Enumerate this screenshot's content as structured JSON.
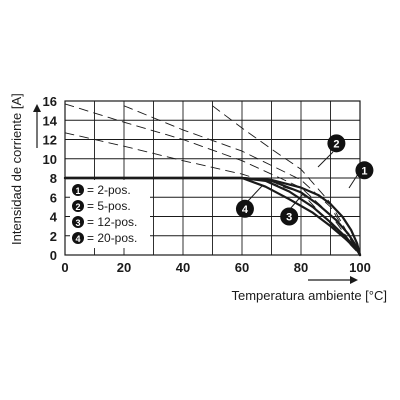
{
  "chart_data": {
    "type": "line",
    "xlabel": "Temperatura ambiente [°C]",
    "ylabel": "Intensidad de corriente [A]",
    "xlim": [
      0,
      100
    ],
    "ylim": [
      0,
      16
    ],
    "xticks": [
      0,
      20,
      40,
      60,
      80,
      100
    ],
    "yticks": [
      0,
      2,
      4,
      6,
      8,
      10,
      12,
      14,
      16
    ],
    "grid": true,
    "legend_position": "bottom-left",
    "legend": [
      {
        "marker": "1",
        "text": "= 2-pos."
      },
      {
        "marker": "2",
        "text": "= 5-pos."
      },
      {
        "marker": "3",
        "text": "= 12-pos."
      },
      {
        "marker": "4",
        "text": "= 20-pos."
      }
    ],
    "series": [
      {
        "marker": "1",
        "style": "solid",
        "x": [
          0,
          60,
          70,
          80,
          86,
          90,
          94,
          97,
          99,
          100
        ],
        "y": [
          8,
          8,
          7.8,
          7.0,
          6.2,
          5.3,
          4.0,
          2.6,
          1.2,
          0
        ]
      },
      {
        "marker": "2",
        "style": "solid",
        "x": [
          0,
          60,
          70,
          80,
          86,
          92,
          96,
          99,
          100
        ],
        "y": [
          8,
          8,
          7.7,
          6.5,
          5.2,
          3.6,
          2.2,
          0.8,
          0
        ]
      },
      {
        "marker": "3",
        "style": "solid",
        "x": [
          0,
          60,
          68,
          76,
          84,
          90,
          95,
          99,
          100
        ],
        "y": [
          8,
          8,
          7.7,
          6.6,
          5.0,
          3.4,
          1.9,
          0.6,
          0
        ]
      },
      {
        "marker": "4",
        "style": "solid",
        "x": [
          0,
          60,
          68,
          76,
          84,
          90,
          95,
          99,
          100
        ],
        "y": [
          8,
          8,
          7.1,
          5.8,
          4.4,
          3.0,
          1.7,
          0.5,
          0
        ]
      },
      {
        "marker": "1",
        "style": "dashed",
        "x": [
          50,
          60,
          70,
          80,
          90,
          100
        ],
        "y": [
          15.5,
          13.2,
          11.0,
          8.9,
          5.4,
          0
        ]
      },
      {
        "marker": "2",
        "style": "dashed",
        "x": [
          20,
          40,
          60,
          80,
          90,
          100
        ],
        "y": [
          15.5,
          13.0,
          10.8,
          7.8,
          5.0,
          0
        ]
      },
      {
        "marker": "3",
        "style": "dashed",
        "x": [
          0,
          20,
          40,
          60,
          80,
          90,
          100
        ],
        "y": [
          15.7,
          13.8,
          12.0,
          9.8,
          7.0,
          4.2,
          0
        ]
      },
      {
        "marker": "4",
        "style": "dashed",
        "x": [
          0,
          20,
          40,
          60,
          80,
          100
        ],
        "y": [
          12.7,
          11.3,
          9.8,
          8.4,
          6.5,
          0
        ]
      }
    ],
    "callouts": [
      {
        "marker": "1",
        "x": 101.5,
        "y": 8.8
      },
      {
        "marker": "2",
        "x": 92,
        "y": 11.6
      },
      {
        "marker": "3",
        "x": 76,
        "y": 4.0
      },
      {
        "marker": "4",
        "x": 61,
        "y": 4.8
      }
    ]
  }
}
